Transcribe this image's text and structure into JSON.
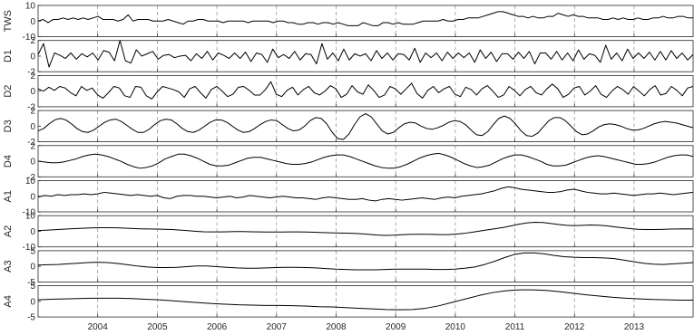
{
  "chart_data": {
    "type": "line",
    "colors": {
      "line": "#000000",
      "axis": "#262626",
      "grid": "#8a8a8a",
      "background": "#ffffff"
    },
    "x_ticks": [
      "2004",
      "2005",
      "2006",
      "2007",
      "2008",
      "2009",
      "2010",
      "2011",
      "2012",
      "2013"
    ],
    "xlim": [
      2003.0,
      2013.99
    ],
    "grid": "dashed vertical at year ticks",
    "panels": [
      {
        "name": "TWS",
        "yticks": [
          "10",
          "0",
          "-10"
        ],
        "ylim": [
          -10,
          10
        ],
        "values": [
          0,
          1,
          -1,
          1,
          1,
          2,
          1,
          2,
          1,
          2,
          1,
          2,
          3,
          1,
          1,
          1,
          0,
          1,
          4,
          0,
          1,
          1,
          1,
          0,
          0,
          0,
          1,
          0,
          -1,
          -2,
          0,
          0,
          1,
          1,
          0,
          0,
          0,
          -1,
          0,
          0,
          0,
          0,
          -1,
          0,
          0,
          0,
          0,
          -1,
          0,
          0,
          -1,
          -1,
          -2,
          -2,
          -1,
          -1,
          -2,
          -1,
          -1,
          -2,
          -1,
          -2,
          -3,
          -3,
          -3,
          -1,
          -2,
          -3,
          -3,
          -1,
          -1,
          -2,
          -1,
          -2,
          -2,
          -2,
          -1,
          0,
          0,
          0,
          0,
          1,
          0,
          0,
          1,
          1,
          2,
          2,
          2,
          3,
          4,
          5,
          6,
          6,
          5,
          4,
          3,
          3,
          2,
          3,
          2,
          2,
          3,
          3,
          5,
          4,
          3,
          4,
          3,
          3,
          2,
          2,
          2,
          1,
          1,
          2,
          1,
          2,
          1,
          1,
          2,
          1,
          1,
          2,
          2,
          3,
          2,
          2,
          3,
          3,
          2,
          2
        ]
      },
      {
        "name": "D1",
        "yticks": [
          "2",
          "0",
          "-2"
        ],
        "ylim": [
          -2,
          2
        ],
        "values": [
          0.2,
          1.6,
          -1.4,
          0.4,
          0.1,
          -0.3,
          0.4,
          -0.4,
          0.3,
          -0.1,
          0.4,
          -0.5,
          0.7,
          0.5,
          -0.6,
          2.0,
          -0.6,
          -0.9,
          0.8,
          0.0,
          0.3,
          0.6,
          -0.4,
          0.1,
          0.2,
          -0.2,
          0.0,
          0.1,
          -0.6,
          0.3,
          -0.3,
          0.6,
          -0.5,
          0.4,
          0.1,
          -0.3,
          0.4,
          -0.3,
          0.5,
          -0.7,
          0.4,
          0.2,
          -0.8,
          0.9,
          -0.2,
          0.2,
          -0.3,
          0.6,
          -0.5,
          0.3,
          0.2,
          -1.0,
          1.6,
          -0.4,
          0.4,
          -0.6,
          0.9,
          -0.5,
          0.3,
          0.0,
          0.3,
          -0.6,
          0.7,
          -0.3,
          0.4,
          -0.5,
          0.3,
          0.2,
          -0.5,
          1.0,
          -0.8,
          0.4,
          -0.2,
          0.4,
          -0.6,
          0.5,
          -0.3,
          0.4,
          -0.2,
          0.4,
          -0.8,
          0.8,
          -0.3,
          0.5,
          -0.7,
          0.3,
          0.3,
          -0.4,
          0.5,
          -0.3,
          0.6,
          -1.0,
          0.4,
          0.4,
          -0.4,
          0.6,
          -0.5,
          0.4,
          -0.6,
          0.8,
          -0.4,
          0.3,
          0.1,
          -0.8,
          1.4,
          -0.4,
          0.4,
          -0.6,
          0.9,
          -0.3,
          0.4,
          -0.3,
          0.5,
          -0.5,
          0.6,
          -0.5,
          0.7,
          -0.3,
          0.4,
          -0.5,
          0.2
        ]
      },
      {
        "name": "D2",
        "yticks": [
          "2",
          "0",
          "-2"
        ],
        "ylim": [
          -2,
          2
        ],
        "values": [
          0.3,
          0.0,
          0.5,
          0.1,
          0.6,
          0.4,
          -0.2,
          -0.6,
          0.6,
          0.1,
          0.4,
          -0.5,
          -0.9,
          -0.2,
          0.6,
          0.4,
          -0.6,
          -0.8,
          0.6,
          0.5,
          -0.6,
          -1.0,
          -0.1,
          0.6,
          0.4,
          0.2,
          -0.1,
          -0.8,
          0.3,
          0.6,
          -0.2,
          -0.9,
          0.2,
          0.6,
          0.0,
          -0.7,
          -0.4,
          0.5,
          0.6,
          0.1,
          -0.5,
          -0.5,
          0.2,
          1.2,
          -0.4,
          -0.7,
          0.1,
          0.5,
          -0.5,
          0.2,
          0.6,
          -0.2,
          -0.5,
          0.0,
          0.7,
          0.3,
          -0.8,
          -0.4,
          0.7,
          -0.1,
          -0.4,
          0.8,
          0.1,
          -0.8,
          -0.5,
          0.6,
          0.3,
          -0.4,
          0.3,
          1.0,
          -0.3,
          -0.9,
          0.1,
          0.6,
          -0.2,
          0.3,
          0.6,
          -0.4,
          -0.7,
          0.5,
          0.2,
          -0.5,
          0.3,
          0.7,
          0.0,
          -0.8,
          -0.5,
          0.6,
          0.1,
          -0.6,
          0.2,
          0.6,
          -0.2,
          -0.5,
          0.3,
          0.9,
          0.3,
          -0.8,
          -0.4,
          0.4,
          0.6,
          -0.5,
          0.0,
          0.7,
          -0.4,
          -0.8,
          0.0,
          0.6,
          0.2,
          -0.4,
          0.6,
          0.0,
          -0.6,
          0.2,
          0.7,
          -0.5,
          -0.3,
          0.6,
          0.1,
          -0.6,
          0.4,
          0.6
        ]
      },
      {
        "name": "D3",
        "yticks": [
          "2",
          "0",
          "-2"
        ],
        "ylim": [
          -2,
          2
        ],
        "values": [
          -0.6,
          -0.3,
          0.3,
          0.8,
          1.0,
          0.8,
          0.3,
          -0.3,
          -0.7,
          -0.8,
          -0.5,
          0.0,
          0.5,
          0.8,
          0.9,
          0.6,
          0.1,
          -0.4,
          -0.8,
          -0.8,
          -0.4,
          0.2,
          0.7,
          0.9,
          0.8,
          0.3,
          -0.3,
          -0.7,
          -0.8,
          -0.5,
          0.0,
          0.5,
          0.8,
          0.8,
          0.5,
          0.0,
          -0.5,
          -0.8,
          -0.7,
          -0.3,
          0.2,
          0.6,
          0.8,
          0.7,
          0.2,
          -0.3,
          -0.6,
          -0.5,
          0.0,
          0.7,
          1.1,
          1.0,
          0.3,
          -0.8,
          -1.6,
          -1.7,
          -1.0,
          0.2,
          1.2,
          1.6,
          1.2,
          0.3,
          -0.6,
          -1.0,
          -0.8,
          -0.2,
          0.3,
          0.5,
          0.4,
          0.0,
          -0.3,
          -0.4,
          -0.2,
          0.1,
          0.5,
          0.7,
          0.6,
          0.2,
          -0.5,
          -1.1,
          -1.2,
          -0.7,
          0.2,
          1.0,
          1.3,
          1.0,
          0.3,
          -0.6,
          -1.2,
          -1.3,
          -0.9,
          -0.1,
          0.7,
          1.1,
          1.1,
          0.7,
          0.0,
          -0.7,
          -1.1,
          -1.0,
          -0.6,
          -0.1,
          0.2,
          0.3,
          0.2,
          0.0,
          -0.3,
          -0.5,
          -0.5,
          -0.3,
          0.0,
          0.3,
          0.5,
          0.6,
          0.5,
          0.4,
          0.2,
          0.0,
          -0.2
        ]
      },
      {
        "name": "D4",
        "yticks": [
          "2",
          "0",
          "-2"
        ],
        "ylim": [
          -2,
          2
        ],
        "values": [
          0.0,
          -0.1,
          -0.2,
          -0.2,
          -0.1,
          0.1,
          0.3,
          0.6,
          0.8,
          0.9,
          0.8,
          0.6,
          0.3,
          0.0,
          -0.4,
          -0.7,
          -0.9,
          -0.8,
          -0.6,
          -0.2,
          0.3,
          0.6,
          0.9,
          0.9,
          0.7,
          0.4,
          0.0,
          -0.4,
          -0.6,
          -0.6,
          -0.5,
          -0.2,
          0.1,
          0.4,
          0.5,
          0.5,
          0.3,
          0.1,
          -0.1,
          -0.3,
          -0.4,
          -0.4,
          -0.3,
          -0.1,
          0.2,
          0.5,
          0.7,
          0.8,
          0.8,
          0.6,
          0.3,
          0.0,
          -0.3,
          -0.6,
          -0.8,
          -0.9,
          -0.9,
          -0.7,
          -0.4,
          0.0,
          0.4,
          0.7,
          0.9,
          1.0,
          0.8,
          0.5,
          0.1,
          -0.3,
          -0.6,
          -0.8,
          -0.7,
          -0.5,
          -0.1,
          0.3,
          0.6,
          0.8,
          0.8,
          0.6,
          0.3,
          0.0,
          -0.4,
          -0.6,
          -0.6,
          -0.5,
          -0.2,
          0.1,
          0.4,
          0.6,
          0.7,
          0.6,
          0.4,
          0.2,
          0.0,
          -0.2,
          -0.4,
          -0.4,
          -0.3,
          -0.1,
          0.2,
          0.5,
          0.7,
          0.8,
          0.8,
          0.6
        ]
      },
      {
        "name": "A1",
        "yticks": [
          "10",
          "0",
          "-10"
        ],
        "ylim": [
          -10,
          10
        ],
        "values": [
          -0.5,
          0.5,
          0,
          1,
          0.5,
          1,
          1,
          1.5,
          1,
          1.5,
          2.5,
          2,
          1.5,
          1,
          0.5,
          1,
          0.5,
          0,
          0.5,
          -1,
          -1.5,
          0,
          0.5,
          0.5,
          0,
          0,
          -0.5,
          -1,
          -0.5,
          0,
          -1,
          -0.5,
          0.5,
          0,
          -0.5,
          -1,
          -0.5,
          0,
          -0.5,
          -1,
          -1,
          -1.5,
          -2,
          -1,
          -0.5,
          -1,
          -1.5,
          -2,
          -2,
          -1.5,
          -2.5,
          -3,
          -2,
          -1.5,
          -2,
          -2.5,
          -2,
          -1.5,
          -1,
          -1.5,
          -2,
          -1,
          -0.5,
          -1,
          0,
          0.5,
          1,
          1.5,
          2.5,
          3.5,
          5,
          6,
          5.5,
          4.5,
          4,
          3.5,
          3,
          2.5,
          2.5,
          3,
          4,
          4.5,
          3.5,
          2.5,
          2,
          1.5,
          1.5,
          2,
          1.5,
          1,
          0.5,
          1,
          1.5,
          1.5,
          2,
          1.5,
          1,
          1.5,
          2,
          2.5
        ]
      },
      {
        "name": "A2",
        "yticks": [
          "10",
          "0",
          "-10"
        ],
        "ylim": [
          -10,
          10
        ],
        "values": [
          0.5,
          0.7,
          1,
          1.3,
          1.6,
          1.8,
          2,
          2.2,
          2.3,
          2.3,
          2.2,
          2,
          1.8,
          1.6,
          1.5,
          1.4,
          1.3,
          1.1,
          0.8,
          0.4,
          0,
          -0.3,
          -0.4,
          -0.4,
          -0.3,
          -0.2,
          -0.2,
          -0.3,
          -0.4,
          -0.5,
          -0.5,
          -0.5,
          -0.4,
          -0.4,
          -0.5,
          -0.6,
          -0.8,
          -1,
          -1.1,
          -1.2,
          -1.3,
          -1.6,
          -2,
          -2.4,
          -2.6,
          -2.5,
          -2.2,
          -2,
          -1.9,
          -1.9,
          -2,
          -2.1,
          -2.1,
          -1.8,
          -1.3,
          -0.6,
          0.2,
          1,
          1.7,
          2.5,
          3.5,
          4.6,
          5.4,
          5.8,
          5.6,
          5,
          4.3,
          3.8,
          3.6,
          3.8,
          4,
          3.9,
          3.5,
          2.9,
          2.3,
          1.7,
          1.3,
          1.1,
          1.1,
          1.2,
          1.4,
          1.5,
          1.6,
          1.5
        ]
      },
      {
        "name": "A3",
        "yticks": [
          "5",
          "0",
          "-5"
        ],
        "ylim": [
          -5,
          5
        ],
        "values": [
          0.4,
          0.5,
          0.6,
          0.8,
          1.0,
          1.2,
          1.3,
          1.2,
          0.9,
          0.5,
          0.1,
          -0.2,
          -0.4,
          -0.4,
          -0.3,
          -0.1,
          0.1,
          0.1,
          -0.1,
          -0.3,
          -0.5,
          -0.6,
          -0.6,
          -0.5,
          -0.4,
          -0.3,
          -0.3,
          -0.4,
          -0.5,
          -0.7,
          -0.9,
          -1.0,
          -1.1,
          -1.1,
          -1.1,
          -1.0,
          -0.9,
          -0.9,
          -0.9,
          -0.9,
          -1.0,
          -1.0,
          -0.9,
          -0.6,
          -0.2,
          0.6,
          1.6,
          2.8,
          3.8,
          4.3,
          4.3,
          4.0,
          3.5,
          3.1,
          2.9,
          2.8,
          2.8,
          2.7,
          2.5,
          2.0,
          1.5,
          1.0,
          0.7,
          0.6,
          0.8,
          1.0,
          1.2
        ]
      },
      {
        "name": "A4",
        "yticks": [
          "5",
          "0",
          "-5"
        ],
        "ylim": [
          -5,
          5
        ],
        "values": [
          0.5,
          0.7,
          0.8,
          0.9,
          1.0,
          1.0,
          1.0,
          0.9,
          0.7,
          0.5,
          0.2,
          -0.1,
          -0.4,
          -0.7,
          -0.9,
          -1.1,
          -1.2,
          -1.3,
          -1.3,
          -1.4,
          -1.5,
          -1.7,
          -1.8,
          -2.0,
          -2.2,
          -2.4,
          -2.6,
          -2.7,
          -2.6,
          -2.2,
          -1.4,
          -0.3,
          0.8,
          1.9,
          2.8,
          3.4,
          3.7,
          3.7,
          3.5,
          3.1,
          2.6,
          2.1,
          1.7,
          1.3,
          1.0,
          0.8,
          0.6,
          0.5,
          0.4,
          0.4
        ]
      }
    ]
  }
}
